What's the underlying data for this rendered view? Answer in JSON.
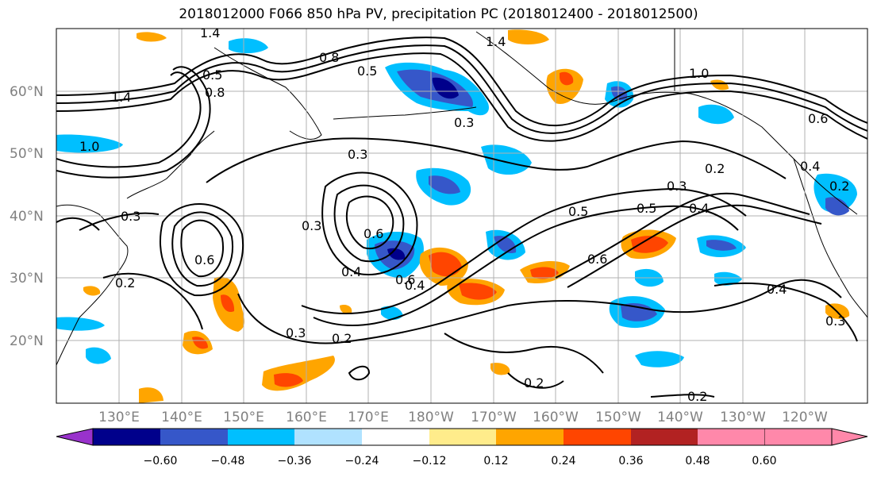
{
  "title": "2018012000 F066 850 hPa PV, precipitation PC (2018012400 - 2018012500)",
  "lat_labels": [
    "60°N",
    "50°N",
    "40°N",
    "30°N",
    "20°N"
  ],
  "lon_labels": [
    "130°E",
    "140°E",
    "150°E",
    "160°E",
    "170°E",
    "180°W",
    "170°W",
    "160°W",
    "150°W",
    "140°W",
    "130°W",
    "120°W"
  ],
  "colorbar": {
    "ticks": [
      "−0.60",
      "−0.48",
      "−0.36",
      "−0.24",
      "−0.12",
      "0.12",
      "0.24",
      "0.36",
      "0.48",
      "0.60"
    ],
    "colors": [
      "#9932cc",
      "#00008b",
      "#3657c9",
      "#00bfff",
      "#b0e2ff",
      "#ffffff",
      "#ffec8b",
      "#ffa500",
      "#ff4500",
      "#b22222",
      "#ff88aa"
    ]
  },
  "contour_labels": [
    {
      "text": "1.4"
    },
    {
      "text": "0.8"
    },
    {
      "text": "1.4"
    },
    {
      "text": "1.4"
    },
    {
      "text": "0.5"
    },
    {
      "text": "1.0"
    },
    {
      "text": "1.0"
    },
    {
      "text": "0.3"
    },
    {
      "text": "0.3"
    },
    {
      "text": "0.2"
    },
    {
      "text": "0.4"
    },
    {
      "text": "0.3"
    },
    {
      "text": "0.4"
    },
    {
      "text": "0.5"
    },
    {
      "text": "0.5"
    },
    {
      "text": "0.3"
    },
    {
      "text": "0.6"
    },
    {
      "text": "0.6"
    },
    {
      "text": "0.2"
    },
    {
      "text": "0.3"
    },
    {
      "text": "0.2"
    },
    {
      "text": "0.4"
    },
    {
      "text": "0.2"
    },
    {
      "text": "0.3"
    },
    {
      "text": "0.2"
    },
    {
      "text": "0.6"
    },
    {
      "text": "0.6"
    },
    {
      "text": "0.8"
    },
    {
      "text": "0.4"
    },
    {
      "text": "0.5"
    },
    {
      "text": "0.3"
    },
    {
      "text": "0.2"
    },
    {
      "text": "0.4"
    },
    {
      "text": "0.6"
    }
  ]
}
